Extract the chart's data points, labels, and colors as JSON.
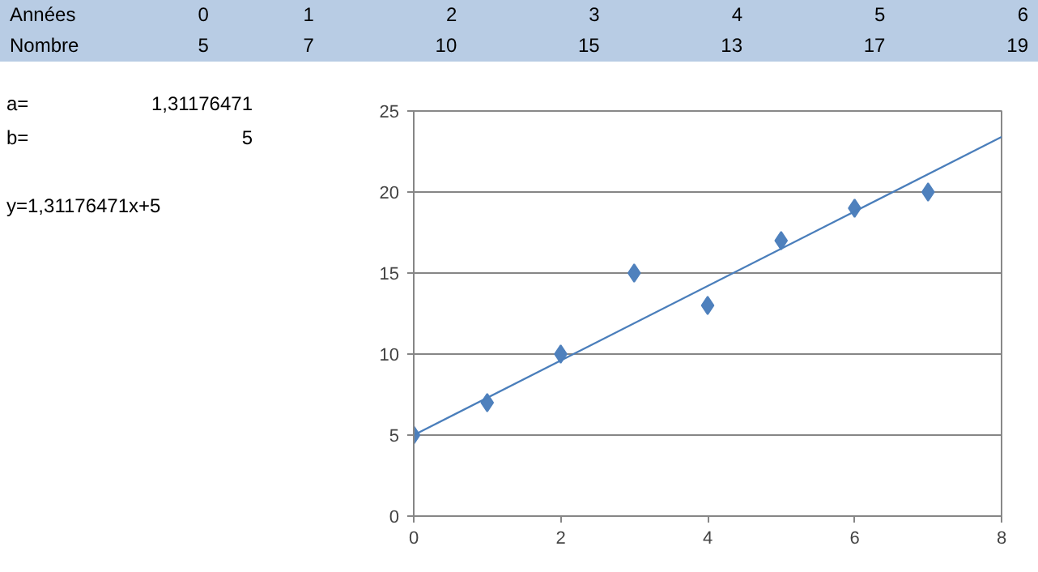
{
  "chart_data": {
    "type": "scatter",
    "xlim": [
      0,
      8
    ],
    "xticks": [
      0,
      2,
      4,
      6,
      8
    ],
    "ylim": [
      0,
      25
    ],
    "yticks": [
      0,
      5,
      10,
      15,
      20,
      25
    ],
    "grid": "y",
    "series": [
      {
        "color": "#4f81bd",
        "marker": "diamond",
        "x": [
          0,
          1,
          2,
          3,
          4,
          5,
          6,
          7
        ],
        "values": [
          5,
          7,
          10,
          15,
          13,
          17,
          19,
          20
        ]
      },
      {
        "type": "line",
        "marker": "none",
        "color": "#4a7ebb",
        "x": [
          0,
          8
        ],
        "values": [
          5,
          23.4
        ]
      }
    ],
    "annotations": [
      "Années",
      "0",
      "1",
      "2",
      "3",
      "4",
      "5",
      "6",
      "Nombre",
      "5",
      "7",
      "10",
      "15",
      "13",
      "17",
      "19",
      "a=",
      "1,31176471",
      "b=",
      "5",
      "y=1,31176471x+5"
    ]
  }
}
